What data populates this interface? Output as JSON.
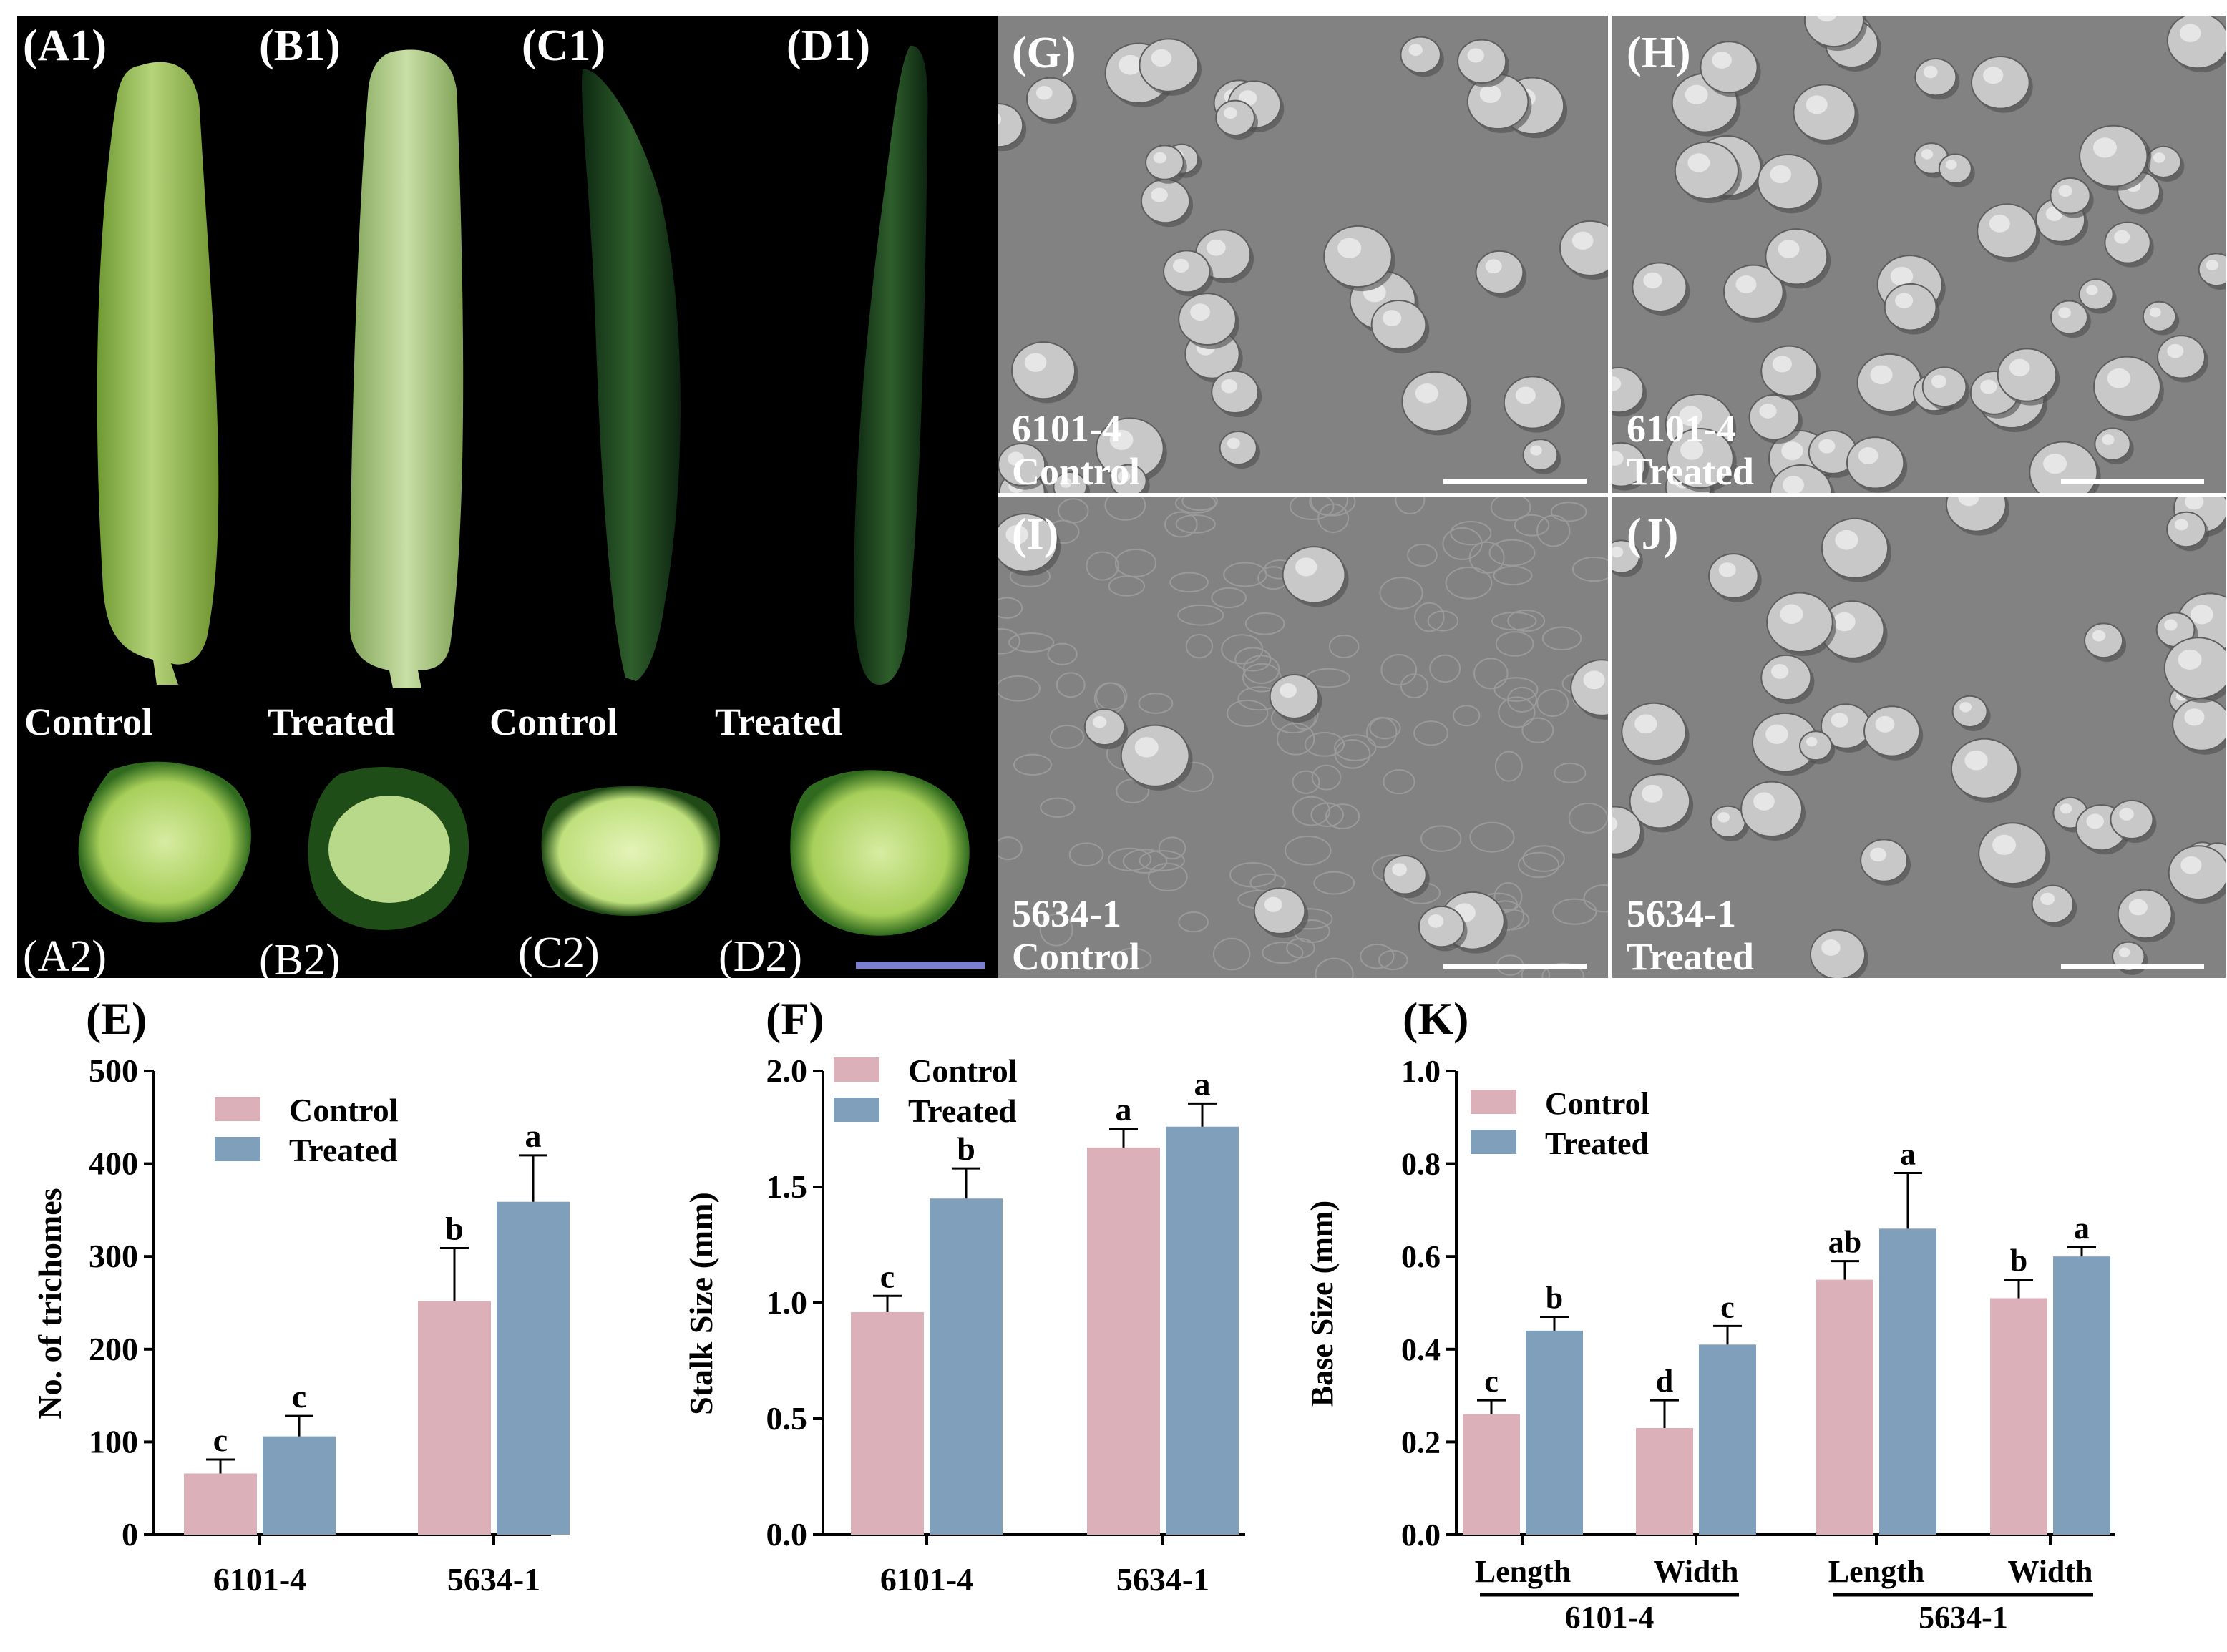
{
  "photo_panel": {
    "fruit_labels": [
      "(A1)",
      "(B1)",
      "(C1)",
      "(D1)"
    ],
    "section_labels": [
      "(A2)",
      "(B2)",
      "(C2)",
      "(D2)"
    ],
    "treatment_labels": [
      "Control",
      "Treated",
      "Control",
      "Treated"
    ]
  },
  "sem_panel": {
    "cells": [
      {
        "label": "(G)",
        "line": "6101-4",
        "treatment": "Control"
      },
      {
        "label": "(H)",
        "line": "6101-4",
        "treatment": "Treated"
      },
      {
        "label": "(I)",
        "line": "5634-1",
        "treatment": "Control"
      },
      {
        "label": "(J)",
        "line": "5634-1",
        "treatment": "Treated"
      }
    ]
  },
  "colors": {
    "control": "#dcb0b8",
    "treated": "#7f9fbb"
  },
  "chart_data": [
    {
      "panel": "(E)",
      "type": "bar",
      "categories": [
        "6101-4",
        "5634-1"
      ],
      "ylabel": "No. of trichomes",
      "ylim": [
        0,
        500
      ],
      "yticks": [
        "0",
        "100",
        "200",
        "300",
        "400",
        "500"
      ],
      "legend": "top-left",
      "series": [
        {
          "name": "Control",
          "values": [
            66,
            252
          ],
          "errors": [
            15,
            57
          ],
          "letters": [
            "c",
            "b"
          ]
        },
        {
          "name": "Treated",
          "values": [
            106,
            359
          ],
          "errors": [
            22,
            50
          ],
          "letters": [
            "c",
            "a"
          ]
        }
      ]
    },
    {
      "panel": "(F)",
      "type": "bar",
      "categories": [
        "6101-4",
        "5634-1"
      ],
      "ylabel": "Stalk Size (mm)",
      "ylim": [
        0,
        2.0
      ],
      "yticks": [
        "0.0",
        "0.5",
        "1.0",
        "1.5",
        "2.0"
      ],
      "legend": "top-left",
      "series": [
        {
          "name": "Control",
          "values": [
            0.96,
            1.67
          ],
          "errors": [
            0.07,
            0.08
          ],
          "letters": [
            "c",
            "a"
          ]
        },
        {
          "name": "Treated",
          "values": [
            1.45,
            1.76
          ],
          "errors": [
            0.13,
            0.1
          ],
          "letters": [
            "b",
            "a"
          ]
        }
      ]
    },
    {
      "panel": "(K)",
      "type": "bar",
      "categories": [
        "Length",
        "Width",
        "Length",
        "Width"
      ],
      "groups": [
        "6101-4",
        "5634-1"
      ],
      "ylabel": "Base Size (mm)",
      "ylim": [
        0,
        1.0
      ],
      "yticks": [
        "0.0",
        "0.2",
        "0.4",
        "0.6",
        "0.8",
        "1.0"
      ],
      "legend": "top-left",
      "series": [
        {
          "name": "Control",
          "values": [
            0.26,
            0.23,
            0.55,
            0.51
          ],
          "errors": [
            0.03,
            0.06,
            0.04,
            0.04
          ],
          "letters": [
            "c",
            "d",
            "ab",
            "b"
          ]
        },
        {
          "name": "Treated",
          "values": [
            0.44,
            0.41,
            0.66,
            0.6
          ],
          "errors": [
            0.03,
            0.04,
            0.12,
            0.02
          ],
          "letters": [
            "b",
            "c",
            "a",
            "a"
          ]
        }
      ]
    }
  ]
}
